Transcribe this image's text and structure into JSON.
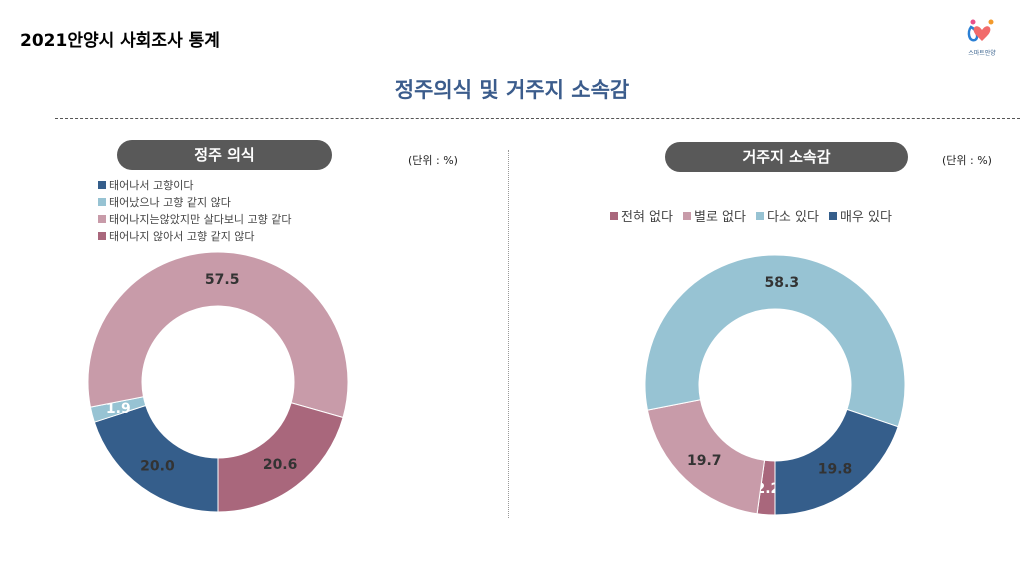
{
  "header": {
    "doc_title": "2021안양시 사회조사 통계",
    "logo_text": "스마트안양",
    "main_title": "정주의식 및 거주지 소속감"
  },
  "colors": {
    "navy": "#355e8b",
    "lightblue": "#97c3d3",
    "pink": "#c89ba9",
    "darkred": "#a9677c"
  },
  "chart_data": [
    {
      "type": "pie",
      "variant": "donut",
      "title": "정주 의식",
      "unit": "(단위 : %)",
      "legend_position": "top-left",
      "slices": [
        {
          "label": "태어나서 고향이다",
          "value": 20.0,
          "color": "#355e8b"
        },
        {
          "label": "태어났으나 고향 같지 않다",
          "value": 1.9,
          "color": "#97c3d3"
        },
        {
          "label": "태어나지는않았지만 살다보니 고향 같다",
          "value": 57.5,
          "color": "#c89ba9"
        },
        {
          "label": "태어나지 않아서 고향 같지 않다",
          "value": 20.6,
          "color": "#a9677c"
        }
      ]
    },
    {
      "type": "pie",
      "variant": "donut",
      "title": "거주지 소속감",
      "unit": "(단위 : %)",
      "legend_position": "top",
      "slices": [
        {
          "label": "전혀 없다",
          "value": 2.2,
          "color": "#a9677c"
        },
        {
          "label": "별로 없다",
          "value": 19.7,
          "color": "#c89ba9"
        },
        {
          "label": "다소 있다",
          "value": 58.3,
          "color": "#97c3d3"
        },
        {
          "label": "매우 있다",
          "value": 19.8,
          "color": "#355e8b"
        }
      ]
    }
  ]
}
